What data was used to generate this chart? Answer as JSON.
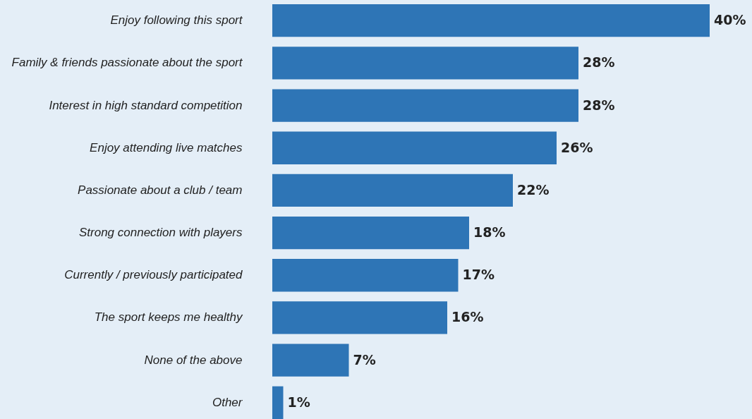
{
  "chart_data": {
    "type": "bar",
    "orientation": "horizontal",
    "categories": [
      "Enjoy following this sport",
      "Family & friends passionate about the sport",
      "Interest in high standard competition",
      "Enjoy attending live matches",
      "Passionate about a club / team",
      "Strong connection with players",
      "Currently / previously participated",
      "The sport keeps me healthy",
      "None of the above",
      "Other"
    ],
    "values": [
      40,
      28,
      28,
      26,
      22,
      18,
      17,
      16,
      7,
      1
    ],
    "value_labels": [
      "40%",
      "28%",
      "28%",
      "26%",
      "22%",
      "18%",
      "17%",
      "16%",
      "7%",
      "1%"
    ],
    "color": "#2e75b6"
  }
}
